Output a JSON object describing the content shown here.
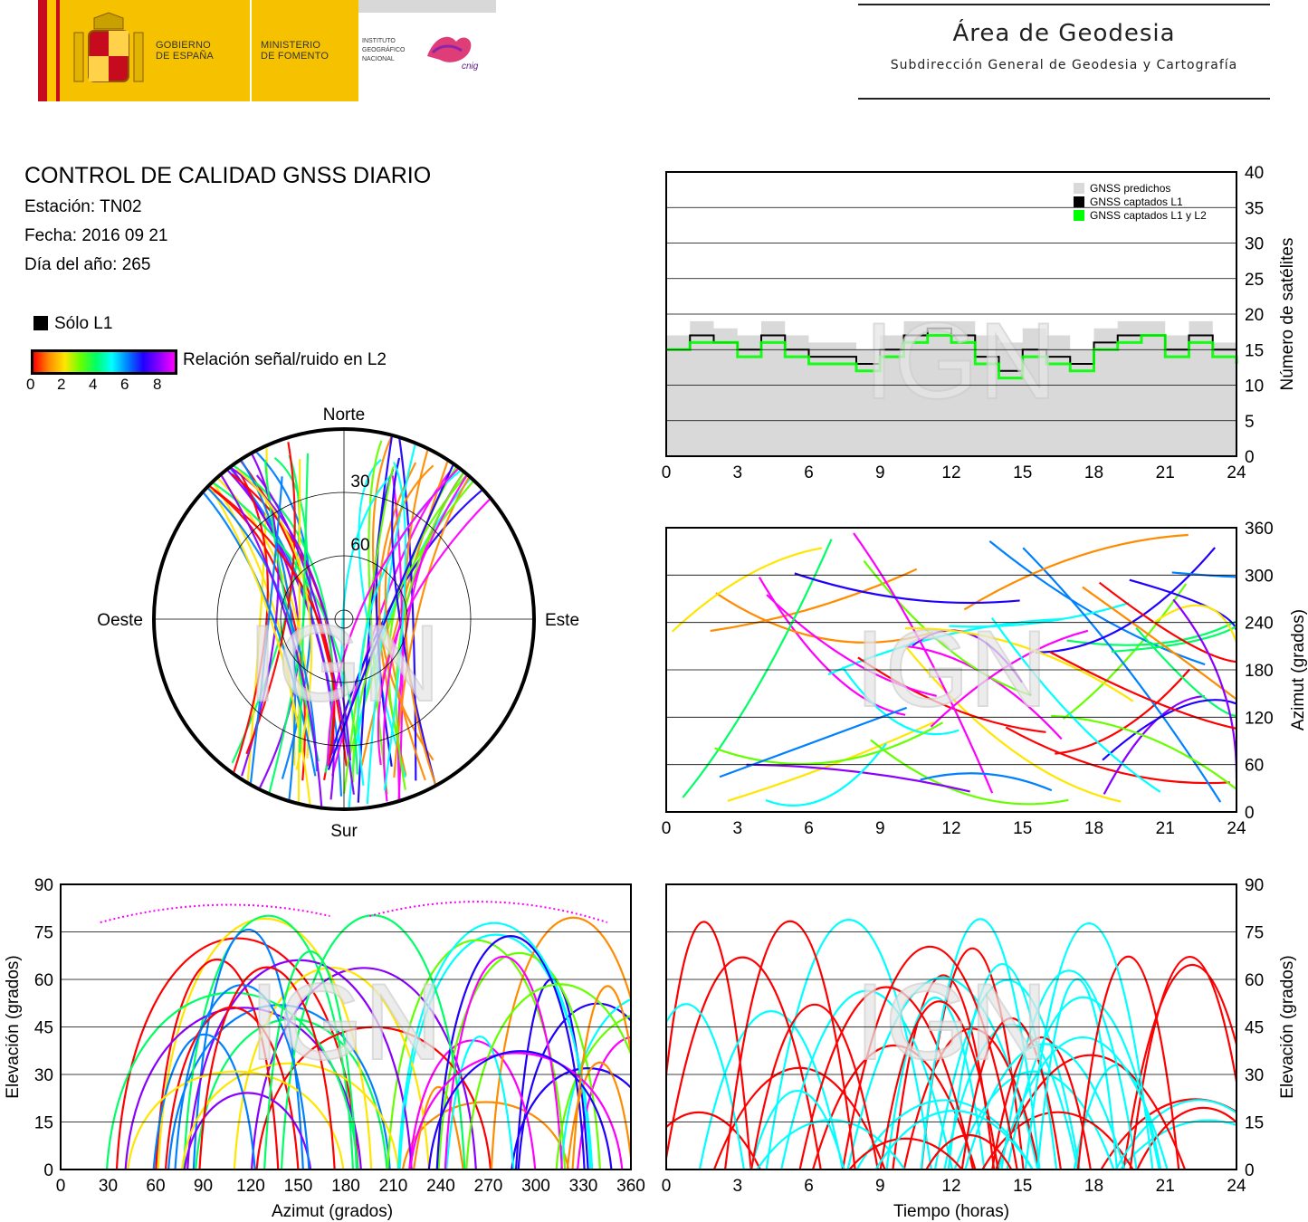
{
  "header": {
    "gobierno": [
      "GOBIERNO",
      "DE ESPAÑA"
    ],
    "ministerio": [
      "MINISTERIO",
      "DE FOMENTO"
    ],
    "instituto": [
      "INSTITUTO",
      "GEOGRÁFICO",
      "NACIONAL"
    ],
    "cnig_logo_text": "cnig",
    "area_title": "Área de Geodesia",
    "area_subtitle": "Subdirección General de Geodesia y Cartografía"
  },
  "report": {
    "title": "CONTROL DE CALIDAD GNSS DIARIO",
    "estacion": "Estación: TN02",
    "fecha": "Fecha: 2016 09 21",
    "dia": "Día del año: 265"
  },
  "legend": {
    "solo_l1": "Sólo L1",
    "snr_label": "Relación señal/ruido en L2",
    "snr_ticks": [
      "0",
      "2",
      "4",
      "6",
      "8"
    ],
    "snr_colors": [
      "#ff0000",
      "#ff8c00",
      "#ffe600",
      "#66ff00",
      "#00ff66",
      "#00ffff",
      "#0080ff",
      "#2000ff",
      "#8a00ff",
      "#ff00ff"
    ]
  },
  "watermark": "IGN",
  "colors": {
    "l1_only": "#000000",
    "predicted": "#d9d9d9",
    "l1l2": "#00ff00"
  },
  "chart_data": [
    {
      "type": "area",
      "id": "satellite-count",
      "x_ticks": [
        "0",
        "3",
        "6",
        "9",
        "12",
        "15",
        "18",
        "21",
        "24"
      ],
      "y_ticks": [
        "0",
        "5",
        "10",
        "15",
        "20",
        "25",
        "30",
        "35",
        "40"
      ],
      "xlim": [
        0,
        24
      ],
      "ylim": [
        0,
        40
      ],
      "ylabel": "Número de satélites",
      "legend": [
        "GNSS predichos",
        "GNSS captados L1",
        "GNSS captados L1 y L2"
      ],
      "legend_position": "top-right",
      "grid": true,
      "x": [
        0,
        1,
        2,
        3,
        4,
        5,
        6,
        7,
        8,
        9,
        10,
        11,
        12,
        13,
        14,
        15,
        16,
        17,
        18,
        19,
        20,
        21,
        22,
        23,
        24
      ],
      "series": [
        {
          "name": "GNSS predichos",
          "values": [
            17,
            19,
            18,
            17,
            19,
            17,
            16,
            16,
            15,
            17,
            19,
            19,
            19,
            17,
            16,
            18,
            17,
            15,
            18,
            19,
            19,
            17,
            19,
            16,
            15
          ]
        },
        {
          "name": "GNSS captados L1",
          "values": [
            15,
            17,
            16,
            15,
            17,
            15,
            14,
            14,
            13,
            15,
            17,
            18,
            17,
            14,
            12,
            15,
            14,
            13,
            16,
            17,
            17,
            15,
            17,
            15,
            14
          ]
        },
        {
          "name": "GNSS captados L1 y L2",
          "values": [
            15,
            16,
            16,
            14,
            16,
            14,
            13,
            13,
            12,
            14,
            16,
            17,
            16,
            13,
            11,
            14,
            13,
            12,
            15,
            16,
            17,
            14,
            16,
            14,
            13
          ]
        }
      ]
    },
    {
      "type": "polar-scatter",
      "id": "skyplot",
      "direction_labels": {
        "north": "Norte",
        "south": "Sur",
        "west": "Oeste",
        "east": "Este"
      },
      "ring_labels": [
        "30",
        "60"
      ],
      "rings_elevation": [
        30,
        60
      ]
    },
    {
      "type": "scatter",
      "id": "azimuth-vs-time",
      "x_ticks": [
        "0",
        "3",
        "6",
        "9",
        "12",
        "15",
        "18",
        "21",
        "24"
      ],
      "y_ticks": [
        "0",
        "60",
        "120",
        "180",
        "240",
        "300",
        "360"
      ],
      "xlim": [
        0,
        24
      ],
      "ylim": [
        0,
        360
      ],
      "ylabel": "Azimut (grados)",
      "grid": true
    },
    {
      "type": "scatter",
      "id": "elevation-vs-azimuth",
      "x_ticks": [
        "0",
        "30",
        "60",
        "90",
        "120",
        "150",
        "180",
        "210",
        "240",
        "270",
        "300",
        "330",
        "360"
      ],
      "y_ticks": [
        "0",
        "15",
        "30",
        "45",
        "60",
        "75",
        "90"
      ],
      "xlim": [
        0,
        360
      ],
      "ylim": [
        0,
        90
      ],
      "xlabel": "Azimut (grados)",
      "ylabel": "Elevación (grados)",
      "grid": true
    },
    {
      "type": "scatter",
      "id": "elevation-vs-time",
      "x_ticks": [
        "0",
        "3",
        "6",
        "9",
        "12",
        "15",
        "18",
        "21",
        "24"
      ],
      "y_ticks": [
        "0",
        "15",
        "30",
        "45",
        "60",
        "75",
        "90"
      ],
      "xlim": [
        0,
        24
      ],
      "ylim": [
        0,
        90
      ],
      "xlabel": "Tiempo (horas)",
      "ylabel": "Elevación (grados)",
      "grid": true
    }
  ]
}
